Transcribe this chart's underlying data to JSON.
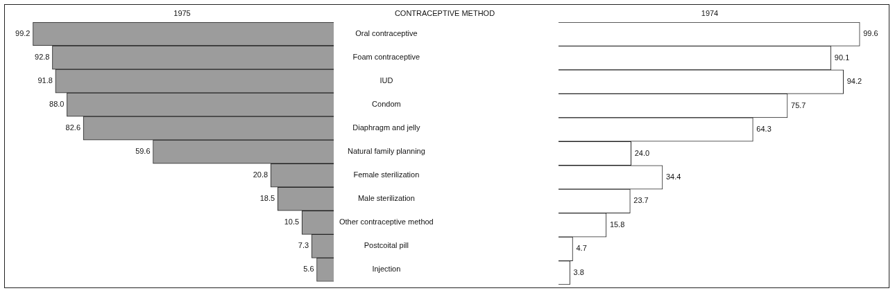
{
  "chart_data": [
    {
      "type": "bar",
      "orientation": "horizontal",
      "title": "1975",
      "ylabel": "CONTRACEPTIVE METHOD",
      "categories": [
        "Oral contraceptive",
        "Foam contraceptive",
        "IUD",
        "Condom",
        "Diaphragm and jelly",
        "Natural family planning",
        "Female sterilization",
        "Male sterilization",
        "Other contraceptive method",
        "Postcoital pill",
        "Injection"
      ],
      "values": [
        99.2,
        92.8,
        91.8,
        88.0,
        82.6,
        59.6,
        20.8,
        18.5,
        10.5,
        7.3,
        5.6
      ],
      "value_labels": [
        "99.2",
        "92.8",
        "91.8",
        "88.0",
        "82.6",
        "59.6",
        "20.8",
        "18.5",
        "10.5",
        "7.3",
        "5.6"
      ],
      "color": "#9c9c9c",
      "tick_labels": "y"
    },
    {
      "type": "bar",
      "orientation": "horizontal",
      "title": "1974",
      "categories": [
        null,
        null,
        null,
        null,
        null,
        null,
        null,
        null,
        null,
        null,
        null
      ],
      "values": [
        99.6,
        90.1,
        94.2,
        75.7,
        64.3,
        24.0,
        34.4,
        23.7,
        15.8,
        4.7,
        3.8
      ],
      "value_labels": [
        "99.6",
        "90.1",
        "94.2",
        "75.7",
        "64.3",
        "24.0",
        "34.4",
        "23.7",
        "15.8",
        "4.7",
        "3.8"
      ],
      "color": "#ffffff",
      "tick_labels": false
    }
  ]
}
